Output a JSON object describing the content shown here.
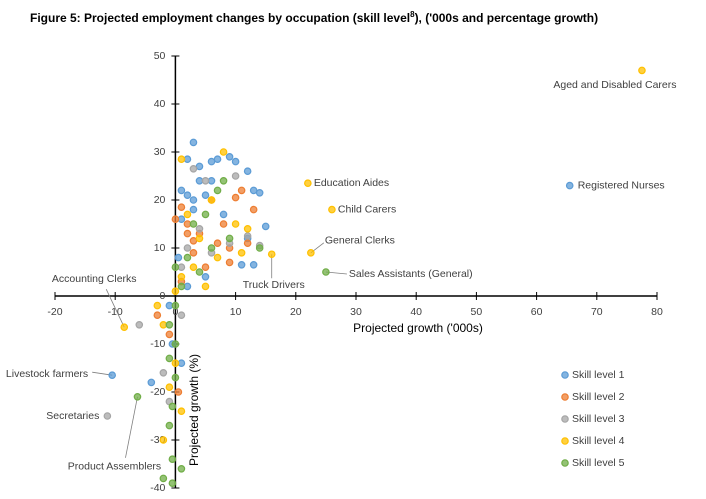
{
  "chart_data": {
    "type": "scatter",
    "title": "Figure 5: Projected employment changes by occupation (skill level",
    "title_footnote": "8",
    "title_end": "), ('000s and percentage growth)",
    "x_label": "Projected growth ('000s)",
    "y_label": "Projected growth (%)",
    "xlim": [
      -20,
      80
    ],
    "ylim": [
      -40,
      50
    ],
    "xticks": [
      -20,
      -10,
      0,
      10,
      20,
      30,
      40,
      50,
      60,
      70,
      80
    ],
    "yticks": [
      -40,
      -30,
      -20,
      -10,
      0,
      10,
      20,
      30,
      40,
      50
    ],
    "grid": false,
    "legend": "lower right",
    "series": [
      {
        "name": "Skill level 1",
        "color": "#5b9bd5",
        "x": [
          65.5,
          -10.5,
          3,
          2,
          6,
          4,
          7,
          9,
          10,
          12,
          1,
          2,
          3,
          5,
          6,
          4,
          13,
          14,
          3,
          1,
          8,
          15,
          12,
          13,
          11,
          5,
          2,
          0.5,
          -1,
          -0.5,
          -4,
          1
        ],
        "values": [
          23,
          -16.5,
          32,
          28.5,
          28,
          27,
          28.5,
          29,
          28,
          26,
          22,
          21,
          20,
          21,
          24,
          24,
          22,
          21.5,
          18,
          16,
          17,
          14.5,
          12,
          6.5,
          6.5,
          4,
          2,
          8,
          -2,
          -10,
          -18,
          -14
        ],
        "labels": [
          "Registered Nurses",
          "Livestock farmers",
          null,
          null,
          null,
          null,
          null,
          null,
          null,
          null,
          null,
          null,
          null,
          null,
          null,
          null,
          null,
          null,
          null,
          null,
          null,
          null,
          null,
          null,
          null,
          null,
          null,
          null,
          null,
          null,
          null,
          null
        ]
      },
      {
        "name": "Skill level 2",
        "color": "#ed7d31",
        "x": [
          0,
          1,
          2,
          4,
          6,
          10,
          11,
          8,
          7,
          9,
          12,
          13,
          3,
          5,
          2,
          9,
          1,
          -3,
          -1,
          0.5,
          3
        ],
        "values": [
          16,
          18.5,
          15,
          13,
          20,
          20.5,
          22,
          15,
          11,
          10,
          11,
          18,
          9,
          6,
          13,
          7,
          3,
          -4,
          -8,
          -20,
          11.5
        ]
      },
      {
        "name": "Skill level 3",
        "color": "#a5a5a5",
        "x": [
          -11.3,
          3,
          5,
          10,
          4,
          12,
          9,
          2,
          6,
          14,
          1,
          -6,
          -2,
          -1,
          1
        ],
        "values": [
          -25,
          26.5,
          24,
          25,
          14,
          12.5,
          11,
          10,
          9,
          10.5,
          6,
          -6,
          -16,
          -22,
          -4
        ],
        "labels": [
          "Secretaries",
          null,
          null,
          null,
          null,
          null,
          null,
          null,
          null,
          null,
          null,
          null,
          null,
          null,
          null
        ]
      },
      {
        "name": "Skill level 4",
        "color": "#ffc000",
        "x": [
          77.5,
          22,
          26,
          22.5,
          16,
          -8.5,
          1,
          8,
          6,
          2,
          4,
          7,
          10,
          12,
          11,
          3,
          1,
          5,
          0,
          -3,
          -2,
          0,
          -1,
          -2,
          1
        ],
        "values": [
          47,
          23.5,
          18,
          9,
          8.7,
          -6.5,
          28.5,
          30,
          20,
          17,
          12,
          8,
          15,
          14,
          9,
          6,
          4,
          2,
          1,
          -2,
          -6,
          -14,
          -19,
          -30,
          -24
        ],
        "labels": [
          "Aged and Disabled Carers",
          "Education Aides",
          "Child Carers",
          "General Clerks",
          "Truck Drivers",
          "Accounting Clerks",
          null,
          null,
          null,
          null,
          null,
          null,
          null,
          null,
          null,
          null,
          null,
          null,
          null,
          null,
          null,
          null,
          null,
          null,
          null
        ]
      },
      {
        "name": "Skill level 5",
        "color": "#70ad47",
        "x": [
          25,
          -6.3,
          8,
          7,
          5,
          3,
          9,
          14,
          6,
          2,
          4,
          0,
          1,
          0,
          -1,
          0,
          -1,
          0,
          -0.5,
          -1,
          -0.5,
          1,
          -2,
          -0.5
        ],
        "values": [
          5,
          -21,
          24,
          22,
          17,
          15,
          12,
          10,
          10,
          8,
          5,
          6,
          2,
          -2,
          -6,
          -10,
          -13,
          -17,
          -23,
          -27,
          -34,
          -36,
          -38,
          -39
        ],
        "labels": [
          "Sales Assistants (General)",
          "Product Assemblers",
          null,
          null,
          null,
          null,
          null,
          null,
          null,
          null,
          null,
          null,
          null,
          null,
          null,
          null,
          null,
          null,
          null,
          null,
          null,
          null,
          null,
          null
        ]
      }
    ]
  }
}
